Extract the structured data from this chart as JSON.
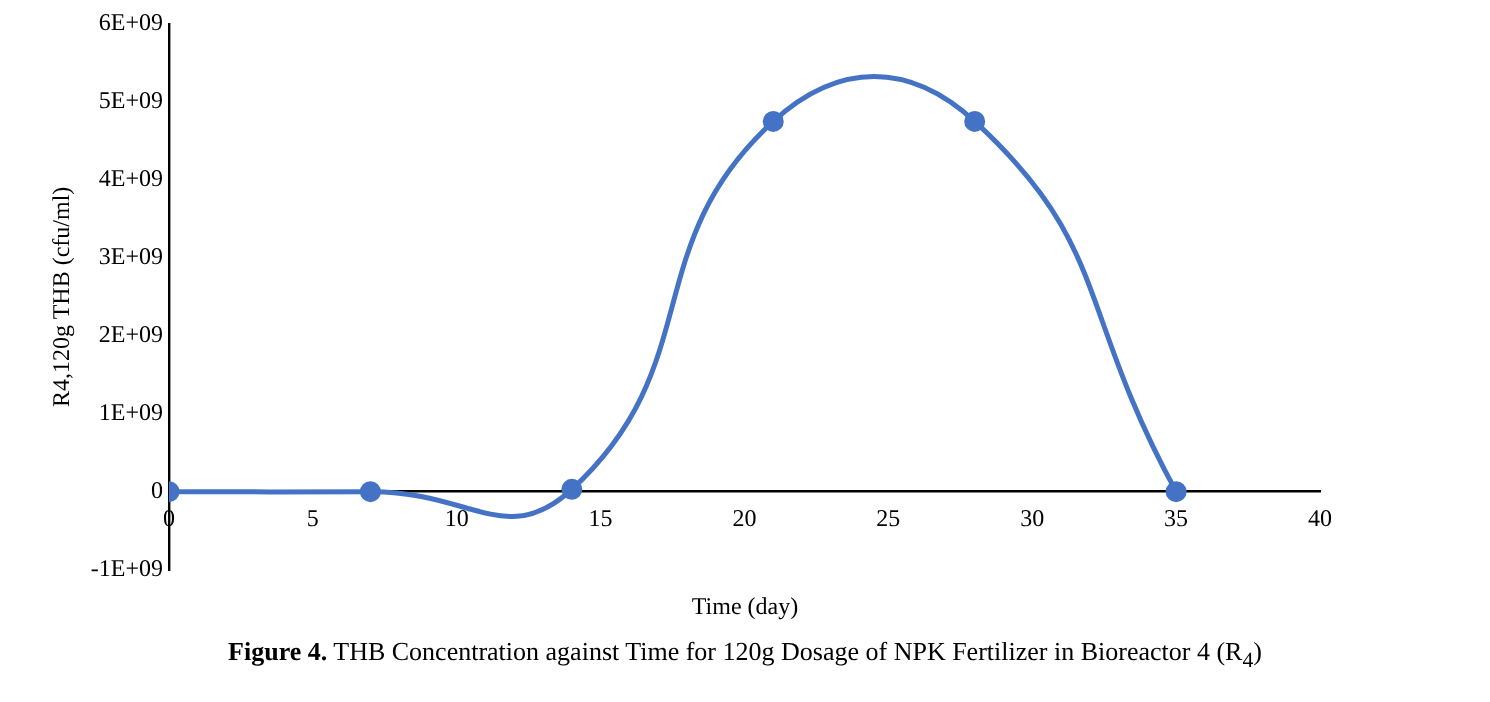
{
  "chart_data": {
    "type": "line",
    "xlabel": "Time (day)",
    "ylabel": "R4,120g THB (cfu/ml)",
    "annotations": [
      "Figure 4. THB Concentration against Time for 120g Dosage of NPK Fertilizer in Bioreactor 4 (R$_{4}$)"
    ],
    "x": [
      0,
      7,
      14,
      21,
      28,
      35
    ],
    "series": [
      {
        "color": "#4472c4",
        "values": [
          0,
          0,
          30000000,
          4750000000,
          4750000000,
          0
        ]
      }
    ],
    "xlim": [
      0,
      40
    ],
    "xticks": [
      0,
      5,
      10,
      15,
      20,
      25,
      30,
      35,
      40
    ],
    "ylim": [
      -1000000000,
      6000000000
    ],
    "yticks": [
      {
        "value": -1000000000,
        "label": "-1E+09"
      },
      {
        "value": 0,
        "label": "0"
      },
      {
        "value": 1000000000,
        "label": "1E+09"
      },
      {
        "value": 2000000000,
        "label": "2E+09"
      },
      {
        "value": 3000000000,
        "label": "3E+09"
      },
      {
        "value": 4000000000,
        "label": "4E+09"
      },
      {
        "value": 5000000000,
        "label": "5E+09"
      },
      {
        "value": 6000000000,
        "label": "6E+09"
      }
    ],
    "grid": false,
    "legend": false,
    "marker": "circle",
    "line_style": "solid"
  }
}
